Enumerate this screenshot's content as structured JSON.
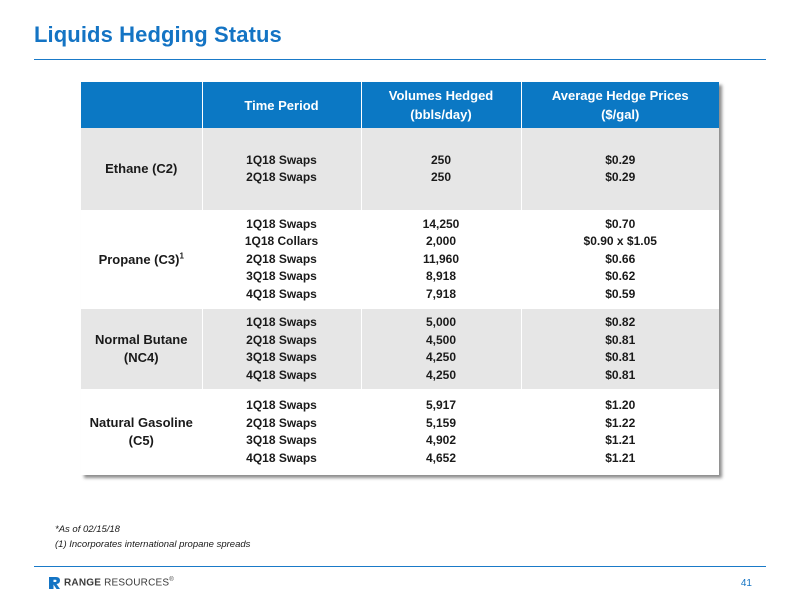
{
  "slide": {
    "title": "Liquids Hedging Status",
    "page_number": "41",
    "logo_text_bold": "RANGE",
    "logo_text_rest": " RESOURCES",
    "logo_mark": "®"
  },
  "table": {
    "headers": {
      "product": "",
      "period": "Time Period",
      "volumes_line1": "Volumes Hedged",
      "volumes_line2": "(bbls/day)",
      "prices_line1": "Average Hedge Prices",
      "prices_line2": "($/gal)"
    },
    "rows": [
      {
        "product_line1": "Ethane (C2)",
        "product_line2": "",
        "product_sup": "",
        "periods": [
          "1Q18 Swaps",
          "2Q18 Swaps"
        ],
        "volumes": [
          "250",
          "250"
        ],
        "prices": [
          "$0.29",
          "$0.29"
        ]
      },
      {
        "product_line1": "Propane (C3)",
        "product_line2": "",
        "product_sup": "1",
        "periods": [
          "1Q18 Swaps",
          "1Q18 Collars",
          "2Q18 Swaps",
          "3Q18 Swaps",
          "4Q18 Swaps"
        ],
        "volumes": [
          "14,250",
          "2,000",
          "11,960",
          "8,918",
          "7,918"
        ],
        "prices": [
          "$0.70",
          "$0.90 x $1.05",
          "$0.66",
          "$0.62",
          "$0.59"
        ]
      },
      {
        "product_line1": "Normal Butane",
        "product_line2": "(NC4)",
        "product_sup": "",
        "periods": [
          "1Q18 Swaps",
          "2Q18 Swaps",
          "3Q18 Swaps",
          "4Q18 Swaps"
        ],
        "volumes": [
          "5,000",
          "4,500",
          "4,250",
          "4,250"
        ],
        "prices": [
          "$0.82",
          "$0.81",
          "$0.81",
          "$0.81"
        ]
      },
      {
        "product_line1": "Natural Gasoline",
        "product_line2": "(C5)",
        "product_sup": "",
        "periods": [
          "1Q18 Swaps",
          "2Q18 Swaps",
          "3Q18 Swaps",
          "4Q18 Swaps"
        ],
        "volumes": [
          "5,917",
          "5,159",
          "4,902",
          "4,652"
        ],
        "prices": [
          "$1.20",
          "$1.22",
          "$1.21",
          "$1.21"
        ]
      }
    ]
  },
  "footnotes": {
    "line1": "*As of 02/15/18",
    "line2": "(1) Incorporates international propane spreads"
  },
  "colors": {
    "accent": "#1474c4",
    "header_bg": "#0b78c4",
    "shaded_row": "#e6e6e6"
  }
}
